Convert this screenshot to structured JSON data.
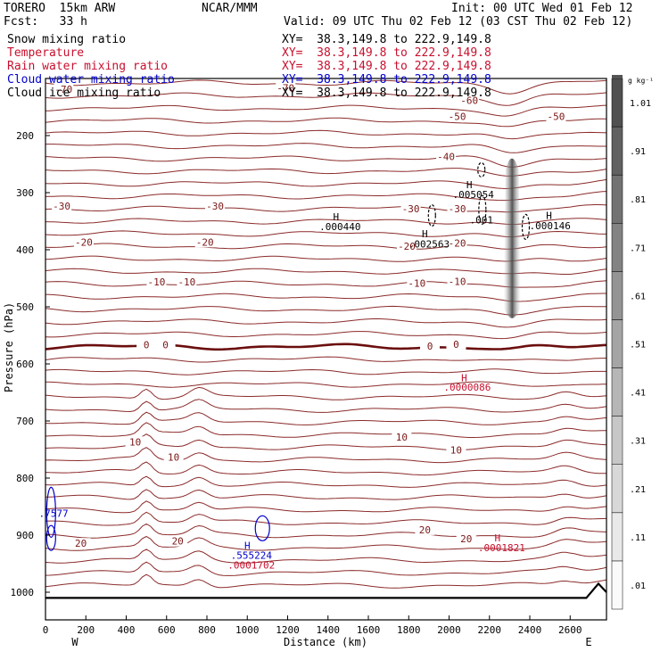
{
  "header": {
    "model": "TORERO  15km ARW",
    "org": "NCAR/MMM",
    "init": "Init: 00 UTC Wed 01 Feb 12",
    "fcst": "Fcst:   33 h",
    "valid": "Valid: 09 UTC Thu 02 Feb 12 (03 CST Thu 02 Feb 12)"
  },
  "fields": [
    {
      "name": "Snow mixing ratio",
      "xy": "XY=  38.3,149.8 to 222.9,149.8",
      "color": "#000000"
    },
    {
      "name": "Temperature",
      "xy": "XY=  38.3,149.8 to 222.9,149.8",
      "color": "#c8102e"
    },
    {
      "name": "Rain water mixing ratio",
      "xy": "XY=  38.3,149.8 to 222.9,149.8",
      "color": "#c8102e"
    },
    {
      "name": "Cloud water mixing ratio",
      "xy": "XY=  38.3,149.8 to 222.9,149.8",
      "color": "#0000cc"
    },
    {
      "name": "Cloud ice mixing ratio",
      "xy": "XY=  38.3,149.8 to 222.9,149.8",
      "color": "#000000"
    }
  ],
  "chart_data": {
    "type": "cross-section",
    "xlabel": "Distance (km)",
    "ylabel": "Pressure (hPa)",
    "xlim": [
      0,
      2780
    ],
    "ylim": [
      1050,
      100
    ],
    "x_ticks": [
      0,
      200,
      400,
      600,
      800,
      1000,
      1200,
      1400,
      1600,
      1800,
      2000,
      2200,
      2400,
      2600
    ],
    "y_ticks": [
      200,
      300,
      400,
      500,
      600,
      700,
      800,
      900,
      1000
    ],
    "west_label": "W",
    "east_label": "E",
    "colorbar": {
      "unit": "g kg⁻¹",
      "labels": [
        ".01",
        ".11",
        ".21",
        ".31",
        ".41",
        ".51",
        ".61",
        ".71",
        ".81",
        ".91",
        "1.01"
      ]
    },
    "temperature_labels": [
      {
        "text": "-70",
        "x": 90,
        "p": 120
      },
      {
        "text": "-70",
        "x": 1190,
        "p": 118
      },
      {
        "text": "-60",
        "x": 2100,
        "p": 140
      },
      {
        "text": "-50",
        "x": 2040,
        "p": 168
      },
      {
        "text": "-50",
        "x": 2530,
        "p": 168
      },
      {
        "text": "-40",
        "x": 1985,
        "p": 238
      },
      {
        "text": "-30",
        "x": 80,
        "p": 325
      },
      {
        "text": "-30",
        "x": 840,
        "p": 325
      },
      {
        "text": "-30",
        "x": 1810,
        "p": 330
      },
      {
        "text": "-30",
        "x": 2040,
        "p": 330
      },
      {
        "text": "-20",
        "x": 190,
        "p": 388
      },
      {
        "text": "-20",
        "x": 790,
        "p": 388
      },
      {
        "text": "-20",
        "x": 1790,
        "p": 395
      },
      {
        "text": "-20",
        "x": 2040,
        "p": 390
      },
      {
        "text": "-10",
        "x": 550,
        "p": 458
      },
      {
        "text": "-10",
        "x": 700,
        "p": 458
      },
      {
        "text": "-10",
        "x": 1840,
        "p": 460
      },
      {
        "text": "-10",
        "x": 2040,
        "p": 457
      },
      {
        "text": "0",
        "x": 500,
        "p": 568
      },
      {
        "text": "0",
        "x": 595,
        "p": 568
      },
      {
        "text": "0",
        "x": 1905,
        "p": 570
      },
      {
        "text": "0",
        "x": 2035,
        "p": 567
      },
      {
        "text": "10",
        "x": 445,
        "p": 738
      },
      {
        "text": "10",
        "x": 635,
        "p": 765
      },
      {
        "text": "10",
        "x": 1765,
        "p": 730
      },
      {
        "text": "10",
        "x": 2035,
        "p": 752
      },
      {
        "text": "20",
        "x": 175,
        "p": 916
      },
      {
        "text": "20",
        "x": 655,
        "p": 912
      },
      {
        "text": "20",
        "x": 1880,
        "p": 892
      },
      {
        "text": "20",
        "x": 2085,
        "p": 908
      }
    ],
    "annotations": [
      {
        "text": "H",
        "x": 1440,
        "p": 342,
        "color": "#000000"
      },
      {
        "text": ".000440",
        "x": 1460,
        "p": 359,
        "color": "#000000"
      },
      {
        "text": "H",
        "x": 1880,
        "p": 372,
        "color": "#000000"
      },
      {
        "text": ".002563",
        "x": 1900,
        "p": 390,
        "color": "#000000"
      },
      {
        "text": "H",
        "x": 2100,
        "p": 286,
        "color": "#000000"
      },
      {
        "text": ".005054",
        "x": 2120,
        "p": 303,
        "color": "#000000"
      },
      {
        "text": ".001",
        "x": 2160,
        "p": 348,
        "color": "#000000"
      },
      {
        "text": "H",
        "x": 2495,
        "p": 340,
        "color": "#000000"
      },
      {
        "text": ".000146",
        "x": 2500,
        "p": 358,
        "color": "#000000"
      },
      {
        "text": "H",
        "x": 2075,
        "p": 624,
        "color": "#c8102e"
      },
      {
        "text": ".0000086",
        "x": 2090,
        "p": 641,
        "color": "#c8102e"
      },
      {
        "text": "H",
        "x": 2240,
        "p": 905,
        "color": "#c8102e"
      },
      {
        "text": ".0001821",
        "x": 2260,
        "p": 922,
        "color": "#c8102e"
      },
      {
        "text": "H",
        "x": 1000,
        "p": 918,
        "color": "#0000cc"
      },
      {
        "text": ".555224",
        "x": 1020,
        "p": 935,
        "color": "#0000cc"
      },
      {
        "text": ".0001702",
        "x": 1020,
        "p": 952,
        "color": "#c8102e"
      },
      {
        "text": ".7577",
        "x": 40,
        "p": 862,
        "color": "#0000cc"
      }
    ]
  }
}
